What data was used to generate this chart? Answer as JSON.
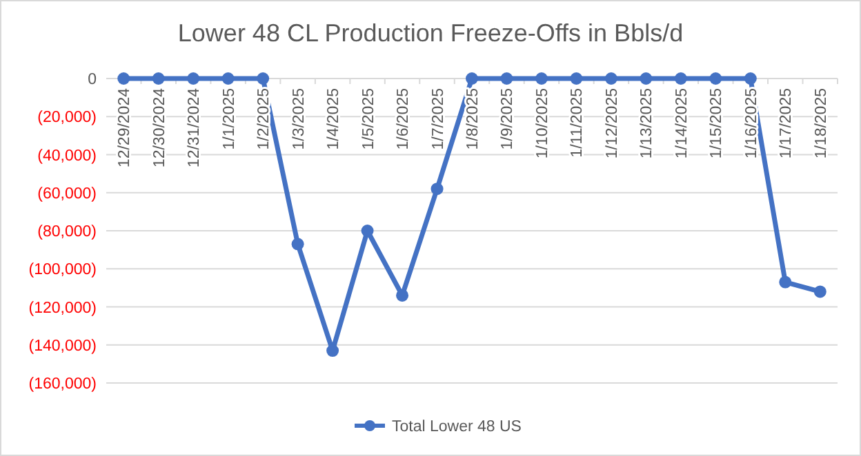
{
  "chart_data": {
    "type": "line",
    "title": "Lower 48 CL Production Freeze-Offs in Bbls/d",
    "categories": [
      "12/29/2024",
      "12/30/2024",
      "12/31/2024",
      "1/1/2025",
      "1/2/2025",
      "1/3/2025",
      "1/4/2025",
      "1/5/2025",
      "1/6/2025",
      "1/7/2025",
      "1/8/2025",
      "1/9/2025",
      "1/10/2025",
      "1/11/2025",
      "1/12/2025",
      "1/13/2025",
      "1/14/2025",
      "1/15/2025",
      "1/16/2025",
      "1/17/2025",
      "1/18/2025"
    ],
    "series": [
      {
        "name": "Total Lower 48 US",
        "color": "#4472c4",
        "values": [
          0,
          0,
          0,
          0,
          0,
          -87000,
          -143000,
          -80000,
          -114000,
          -58000,
          0,
          0,
          0,
          0,
          0,
          0,
          0,
          0,
          0,
          -107000,
          -112000
        ]
      }
    ],
    "ylim": [
      -160000,
      0
    ],
    "yticks": [
      {
        "value": 0,
        "label": "0"
      },
      {
        "value": -20000,
        "label": "(20,000)"
      },
      {
        "value": -40000,
        "label": "(40,000)"
      },
      {
        "value": -60000,
        "label": "(60,000)"
      },
      {
        "value": -80000,
        "label": "(80,000)"
      },
      {
        "value": -100000,
        "label": "(100,000)"
      },
      {
        "value": -120000,
        "label": "(120,000)"
      },
      {
        "value": -140000,
        "label": "(140,000)"
      },
      {
        "value": -160000,
        "label": "(160,000)"
      }
    ],
    "grid": "y",
    "legend": "bottom",
    "marker": "circle",
    "line_style": "solid"
  }
}
